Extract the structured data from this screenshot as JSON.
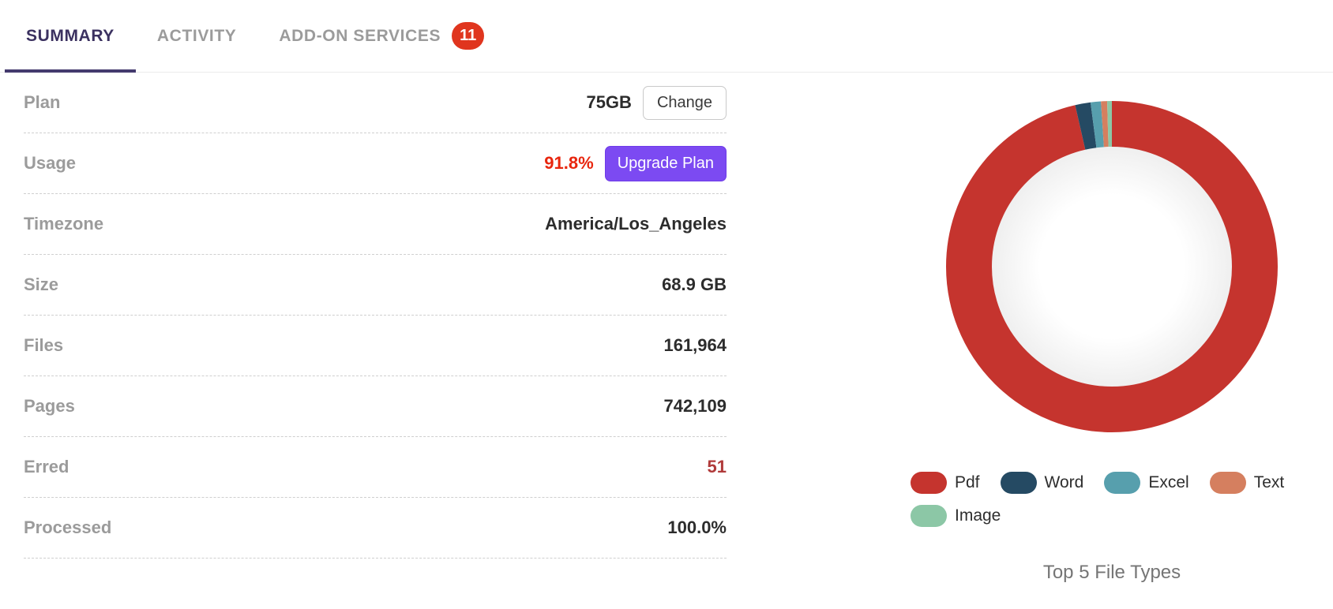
{
  "tabs": [
    {
      "label": "SUMMARY",
      "active": true
    },
    {
      "label": "ACTIVITY",
      "active": false
    },
    {
      "label": "ADD-ON SERVICES",
      "active": false,
      "badge": "11"
    }
  ],
  "summary": {
    "rows": [
      {
        "label": "Plan",
        "value": "75GB",
        "action": "Change"
      },
      {
        "label": "Usage",
        "value": "91.8%",
        "action": "Upgrade Plan"
      },
      {
        "label": "Timezone",
        "value": "America/Los_Angeles"
      },
      {
        "label": "Size",
        "value": "68.9 GB"
      },
      {
        "label": "Files",
        "value": "161,964"
      },
      {
        "label": "Pages",
        "value": "742,109"
      },
      {
        "label": "Erred",
        "value": "51"
      },
      {
        "label": "Processed",
        "value": "100.0%"
      }
    ]
  },
  "chart_data": {
    "type": "pie",
    "title": "Top 5 File Types",
    "labels": [
      "Pdf",
      "Word",
      "Excel",
      "Text",
      "Image"
    ],
    "values": [
      96.4,
      1.5,
      1.0,
      0.6,
      0.5
    ],
    "colors": [
      "#c5342e",
      "#254a63",
      "#579fad",
      "#d57f5f",
      "#8cc7a6"
    ],
    "legend_position": "bottom",
    "donut": true,
    "start_angle_deg": 0,
    "direction": "clockwise"
  },
  "colors": {
    "active_tab": "#3b3160",
    "badge_red": "#e0351e",
    "usage_red": "#e8260e",
    "erred_red": "#b03a3a",
    "accent_purple": "#7c4af2"
  }
}
